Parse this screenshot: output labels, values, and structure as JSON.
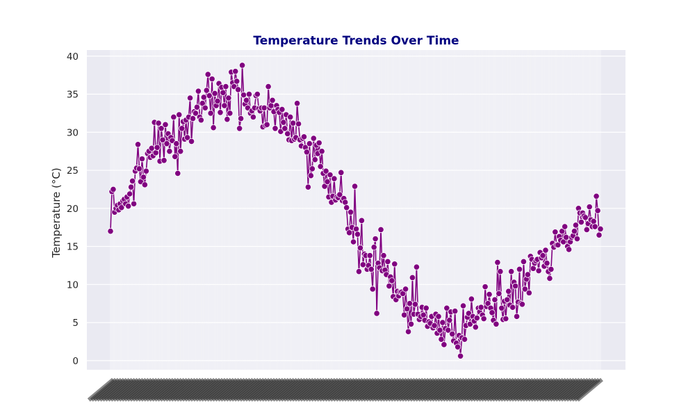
{
  "colors": {
    "plot_bg": "#EAEAF2",
    "grid": "#FFFFFF",
    "line": "#800080",
    "marker_edge": "#FFFFFF",
    "title": "#000080",
    "text": "#262626"
  },
  "chart_data": {
    "type": "line",
    "title": "Temperature Trends Over Time",
    "xlabel": "",
    "ylabel": "Temperature (°C)",
    "ylim": [
      -1.2,
      40.8
    ],
    "yticks": [
      0,
      5,
      10,
      15,
      20,
      25,
      30,
      35,
      40
    ],
    "x_tick_labels_legible": false,
    "grid": true,
    "marker": "circle",
    "series": [
      {
        "values": [
          17.0,
          22.2,
          22.5,
          19.5,
          20.0,
          20.4,
          19.8,
          20.6,
          20.1,
          21.0,
          21.2,
          20.6,
          21.5,
          20.3,
          21.9,
          22.8,
          23.6,
          20.6,
          24.9,
          25.3,
          28.4,
          25.2,
          23.5,
          26.5,
          24.1,
          23.1,
          24.9,
          27.2,
          27.5,
          26.7,
          27.9,
          26.9,
          31.3,
          27.3,
          28.0,
          31.2,
          26.2,
          30.5,
          29.0,
          26.3,
          31.0,
          28.5,
          29.8,
          27.5,
          29.3,
          28.9,
          32.0,
          26.8,
          28.5,
          24.6,
          32.3,
          27.5,
          30.5,
          31.4,
          29.1,
          31.6,
          29.3,
          32.0,
          34.5,
          28.8,
          31.8,
          32.7,
          32.5,
          33.3,
          35.4,
          32.0,
          31.6,
          33.8,
          34.6,
          33.2,
          35.5,
          37.6,
          34.8,
          32.5,
          37.0,
          30.6,
          35.1,
          33.5,
          34.1,
          36.4,
          32.6,
          35.9,
          35.2,
          33.5,
          36.0,
          31.7,
          34.5,
          32.5,
          37.9,
          36.5,
          36.0,
          38.0,
          36.7,
          35.6,
          30.5,
          31.8,
          38.8,
          34.9,
          33.7,
          34.2,
          33.2,
          35.0,
          32.5,
          32.8,
          32.0,
          33.2,
          34.8,
          35.0,
          33.1,
          32.8,
          33.2,
          30.7,
          33.2,
          30.9,
          31.0,
          36.0,
          33.2,
          33.5,
          34.2,
          32.7,
          30.5,
          33.5,
          33.0,
          32.6,
          30.1,
          33.0,
          31.3,
          30.5,
          32.3,
          29.8,
          29.0,
          32.0,
          28.9,
          31.2,
          29.1,
          29.3,
          33.8,
          31.1,
          29.0,
          28.2,
          29.2,
          29.4,
          28.0,
          27.4,
          22.8,
          28.5,
          24.3,
          25.2,
          29.2,
          26.4,
          28.3,
          27.2,
          28.6,
          25.5,
          27.5,
          24.6,
          22.9,
          24.9,
          23.5,
          21.5,
          24.4,
          20.8,
          21.6,
          23.9,
          21.1,
          21.5,
          21.4,
          21.8,
          24.7,
          21.0,
          21.3,
          20.8,
          20.1,
          17.3,
          16.8,
          19.5,
          17.5,
          15.6,
          22.9,
          17.3,
          16.6,
          11.7,
          14.8,
          18.4,
          12.6,
          14.0,
          13.8,
          12.0,
          12.5,
          13.8,
          12.0,
          9.4,
          14.9,
          16.0,
          6.2,
          12.8,
          12.2,
          17.2,
          11.8,
          13.8,
          11.9,
          11.3,
          13.0,
          9.8,
          11.0,
          10.5,
          8.4,
          12.7,
          8.0,
          9.1,
          8.5,
          9.0,
          9.0,
          8.8,
          6.0,
          9.4,
          6.8,
          3.8,
          7.5,
          4.8,
          10.9,
          6.1,
          7.4,
          12.3,
          6.1,
          5.4,
          5.8,
          7.0,
          6.0,
          5.3,
          6.9,
          4.5,
          5.1,
          4.9,
          5.8,
          4.3,
          4.6,
          6.1,
          3.6,
          5.8,
          4.0,
          2.8,
          5.0,
          2.1,
          4.2,
          6.9,
          4.0,
          5.3,
          6.4,
          3.5,
          2.6,
          6.5,
          2.3,
          1.8,
          3.3,
          0.6,
          3.0,
          7.2,
          2.8,
          4.6,
          5.7,
          6.2,
          4.8,
          8.1,
          5.8,
          5.2,
          4.4,
          5.6,
          6.9,
          6.4,
          7.0,
          6.0,
          5.5,
          9.7,
          7.1,
          7.5,
          8.7,
          6.9,
          6.3,
          5.3,
          8.0,
          4.8,
          12.9,
          8.8,
          11.7,
          6.9,
          5.4,
          7.8,
          5.5,
          8.0,
          9.1,
          7.3,
          11.7,
          7.0,
          10.3,
          9.8,
          5.8,
          7.7,
          12.0,
          7.5,
          7.4,
          13.0,
          9.4,
          10.7,
          11.3,
          8.9,
          13.7,
          13.3,
          12.1,
          12.8,
          13.1,
          13.3,
          11.8,
          14.2,
          13.5,
          13.8,
          12.4,
          14.5,
          12.8,
          11.7,
          10.8,
          12.0,
          15.4,
          14.9,
          16.9,
          15.2,
          15.2,
          16.3,
          15.8,
          17.0,
          15.6,
          17.6,
          16.2,
          15.0,
          14.6,
          15.6,
          16.2,
          16.4,
          17.0,
          17.8,
          16.0,
          20.0,
          19.4,
          18.2,
          19.4,
          19.0,
          18.8,
          17.2,
          18.0,
          20.2,
          18.5,
          17.6,
          18.3,
          17.6,
          21.6,
          19.7,
          16.5,
          17.3
        ]
      }
    ]
  }
}
